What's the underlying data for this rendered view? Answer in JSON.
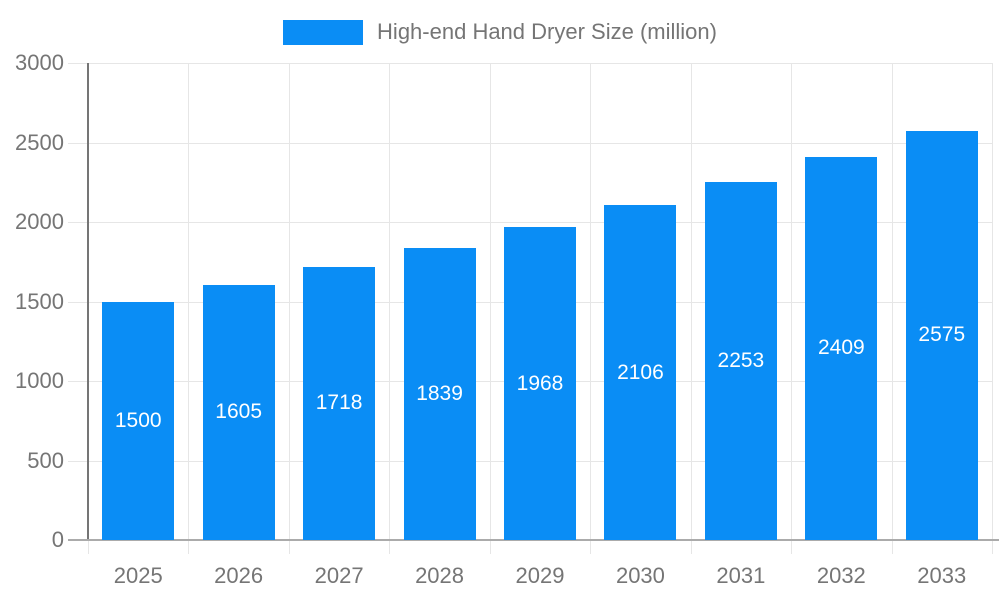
{
  "chart_data": {
    "type": "bar",
    "title": "High-end Hand Dryer Size (million)",
    "categories": [
      "2025",
      "2026",
      "2027",
      "2028",
      "2029",
      "2030",
      "2031",
      "2032",
      "2033"
    ],
    "values": [
      1500,
      1605,
      1718,
      1839,
      1968,
      2106,
      2253,
      2409,
      2575
    ],
    "xlabel": "",
    "ylabel": "",
    "ylim": [
      0,
      3000
    ],
    "yticks": [
      0,
      500,
      1000,
      1500,
      2000,
      2500,
      3000
    ],
    "grid": true,
    "legend_position": "top",
    "bar_color": "#0a8df5",
    "bar_label_color": "#ffffff",
    "axis_text_color": "#757575",
    "grid_color": "#e6e6e6",
    "yaxis_line_color": "#757575",
    "baseline_color": "#ababab"
  }
}
